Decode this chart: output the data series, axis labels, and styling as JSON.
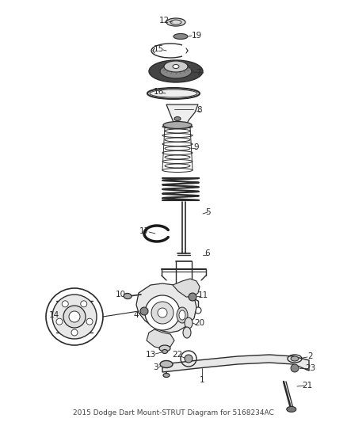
{
  "title": "2015 Dodge Dart Mount-STRUT Diagram for 5168234AC",
  "bg": "#ffffff",
  "lc": "#2a2a2a",
  "fig_w": 4.38,
  "fig_h": 5.33,
  "dpi": 100
}
